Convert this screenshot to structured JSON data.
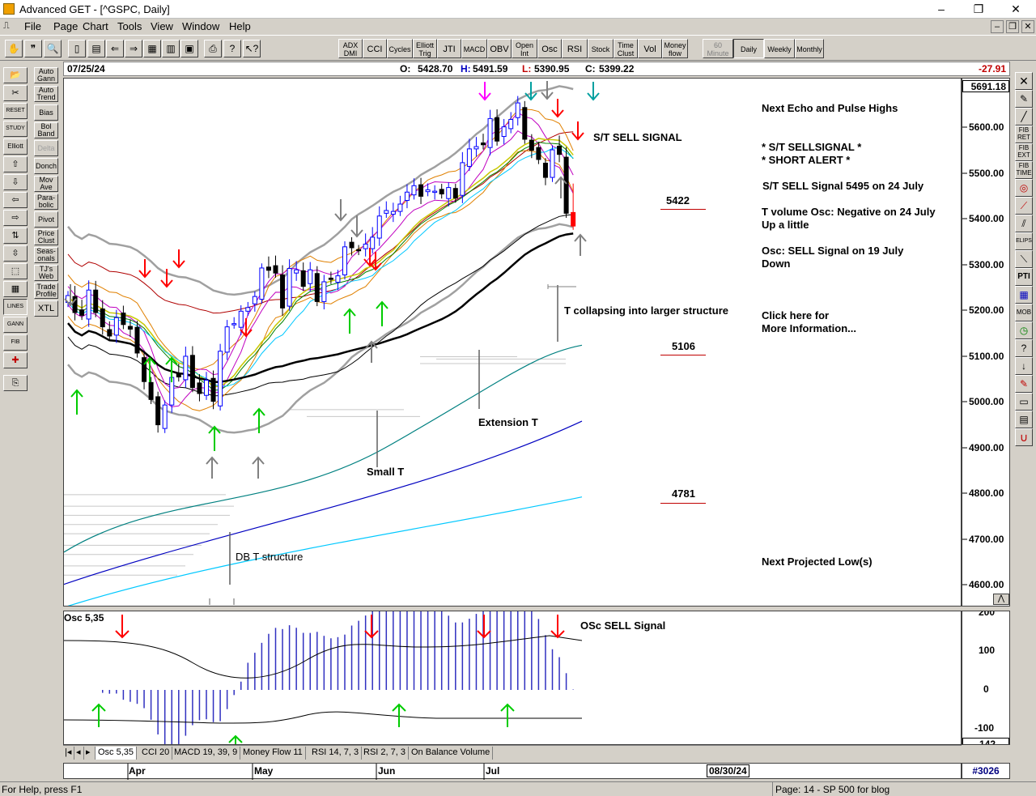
{
  "window": {
    "title": "Advanced GET - [^GSPC, Daily]",
    "controls": [
      "–",
      "❐",
      "✕"
    ]
  },
  "menu": [
    "File",
    "Page",
    "Chart",
    "Tools",
    "View",
    "Window",
    "Help"
  ],
  "toolbar": {
    "indicators": [
      "ADX DMI",
      "CCI",
      "Cycles",
      "Elliott Trig",
      "JTI",
      "MACD",
      "OBV",
      "Open Int",
      "Osc",
      "RSI",
      "Stock",
      "Time Clust",
      "Vol",
      "Money flow"
    ],
    "periods": [
      "60 Minute",
      "Daily",
      "Weekly",
      "Monthly"
    ],
    "active_period": "Daily"
  },
  "left_tools": [
    "Auto Gann",
    "Auto Trend",
    "Bias",
    "Bol Band",
    "Delta",
    "Donch",
    "Mov Ave",
    "Para-bolic",
    "Pivot",
    "Price Clust",
    "Seas-onals",
    "TJ's Web",
    "Trade Profile",
    "XTL"
  ],
  "left_icons": [
    "RESET",
    "STUDY",
    "Elliott",
    "LINES",
    "GANN",
    "FIB"
  ],
  "right_icons": [
    "FIB RET",
    "FIB EXT",
    "FIB TIME",
    "ELIPS",
    "PTI",
    "MOB"
  ],
  "info_bar": {
    "date": "07/25/24",
    "open_label": "O:",
    "open": "5428.70",
    "high_label": "H:",
    "high": "5491.59",
    "low_label": "L:",
    "low": "5390.95",
    "close_label": "C:",
    "close": "5399.22",
    "change": "-27.91"
  },
  "price_axis": {
    "current": "5691.18",
    "ticks": [
      "5600.00",
      "5500.00",
      "5400.00",
      "5300.00",
      "5200.00",
      "5100.00",
      "5000.00",
      "4900.00",
      "4800.00",
      "4700.00",
      "4600.00"
    ]
  },
  "annotations": {
    "st_sell": "S/T SELL SIGNAL",
    "lvl_5422": "5422",
    "t_collapsing": "T collapsing into larger structure",
    "lvl_5106": "5106",
    "extension_t": "Extension T",
    "small_t": "Small T",
    "lvl_4781": "4781",
    "db_t": "DB T structure",
    "next_echo": "Next Echo and Pulse Highs",
    "st_sellsignal": "* S/T SELLSIGNAL *",
    "short_alert": "* SHORT ALERT *",
    "st_sell_5495": "S/T SELL Signal 5495 on 24 July",
    "t_volume": "T volume Osc: Negative on 24 July",
    "up_little": "Up a little",
    "osc_sell_19": "Osc: SELL Signal on 19 July",
    "down": "Down",
    "click_here": "Click here for",
    "more_info": "More Information...",
    "next_low": "Next Projected Low(s)"
  },
  "oscillator": {
    "label": "Osc 5,35",
    "sell_label": "OSc SELL Signal",
    "ticks": [
      "200",
      "100",
      "0",
      "-100"
    ],
    "current": "-142"
  },
  "osc_tabs": [
    "Osc 5,35",
    "CCI 20",
    "MACD 19, 39, 9",
    "Money Flow 11",
    "RSI 14, 7, 3",
    "RSI 2, 7, 3",
    "On Balance Volume"
  ],
  "date_axis": {
    "months": [
      "Apr",
      "May",
      "Jun",
      "Jul"
    ],
    "future_date": "08/30/24",
    "count": "#3026"
  },
  "status": {
    "help": "For Help, press F1",
    "page": "Page: 14 - SP 500 for blog"
  },
  "colors": {
    "bull_candle": "#0000ff",
    "bear_candle": "#000000",
    "last_candle": "#ff0000",
    "sell_arrow": "#ff0000",
    "buy_arrow": "#00cc00",
    "level_line": "#c00000"
  },
  "chart_data": {
    "type": "candlestick",
    "symbol": "^GSPC",
    "timeframe": "Daily",
    "ylim": [
      4570,
      5720
    ],
    "key_levels": [
      5422,
      5106,
      4781
    ],
    "last_bar": {
      "date": "07/25/24",
      "open": 5428.7,
      "high": 5491.59,
      "low": 5390.95,
      "close": 5399.22
    },
    "approx_closes": [
      5248,
      5211,
      5205,
      5260,
      5211,
      5180,
      5160,
      5200,
      5185,
      5175,
      5123,
      5061,
      5022,
      4967,
      5010,
      5070,
      5071,
      5116,
      5048,
      5035,
      5064,
      5018,
      5127,
      5180,
      5187,
      5214,
      5222,
      5246,
      5308,
      5303,
      5297,
      5221,
      5307,
      5304,
      5268,
      5304,
      5235,
      5278,
      5283,
      5291,
      5354,
      5352,
      5346,
      5360,
      5375,
      5421,
      5433,
      5431,
      5447,
      5473,
      5487,
      5464,
      5478,
      5475,
      5469,
      5483,
      5460,
      5537,
      5567,
      5572,
      5576,
      5633,
      5584,
      5615,
      5631,
      5667,
      5588,
      5564,
      5544,
      5505,
      5565,
      5555,
      5427,
      5399
    ]
  }
}
